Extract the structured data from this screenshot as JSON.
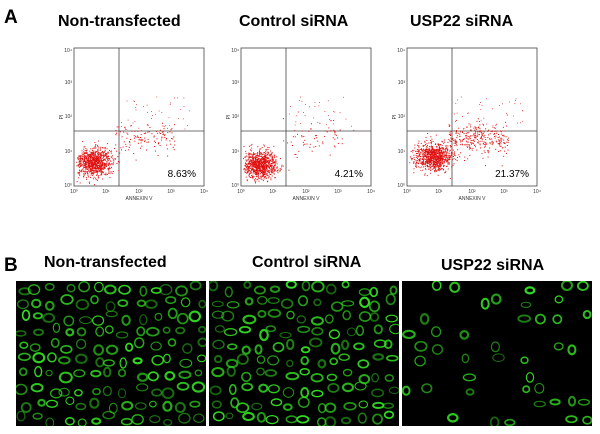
{
  "figure": {
    "panel_a_letter": "A",
    "panel_b_letter": "B"
  },
  "panel_a": {
    "x_axis_label": "ANNEXIN V",
    "y_axis_label": "PI",
    "x_ticks": [
      "10⁰",
      "10¹",
      "10²",
      "10³",
      "10⁴"
    ],
    "y_ticks": [
      "10⁰",
      "10¹",
      "10²",
      "10³",
      "10⁴"
    ],
    "dot_color": "#e01010",
    "plots": [
      {
        "title": "Non-transfected",
        "percent_label": "8.63%",
        "apoptotic_percent": 8.63
      },
      {
        "title": "Control siRNA",
        "percent_label": "4.21%",
        "apoptotic_percent": 4.21
      },
      {
        "title": "USP22 siRNA",
        "percent_label": "21.37%",
        "apoptotic_percent": 21.37
      }
    ]
  },
  "panel_b": {
    "stain_color": "#33dd22",
    "images": [
      {
        "title": "Non-transfected"
      },
      {
        "title": "Control siRNA"
      },
      {
        "title": "USP22 siRNA"
      }
    ]
  }
}
